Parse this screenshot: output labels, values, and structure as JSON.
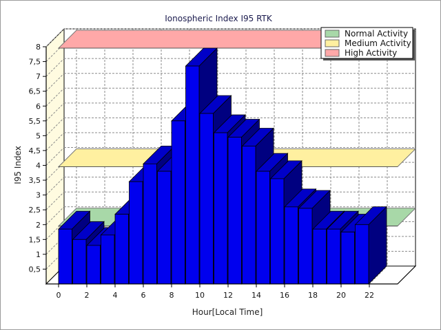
{
  "chart_data": {
    "type": "bar",
    "title": "Ionospheric Index I95 RTK",
    "xlabel": "Hour[Local Time]",
    "ylabel": "I95 Index",
    "xlim": [
      0,
      24
    ],
    "ylim": [
      0,
      8
    ],
    "x_ticks": [
      "0",
      "2",
      "4",
      "6",
      "8",
      "10",
      "12",
      "14",
      "16",
      "18",
      "20",
      "22"
    ],
    "y_ticks": [
      "0,5",
      "1",
      "1,5",
      "2",
      "2,5",
      "3",
      "3,5",
      "4",
      "4,5",
      "5",
      "5,5",
      "6",
      "6,5",
      "7",
      "7,5",
      "8"
    ],
    "x": [
      0,
      1,
      2,
      3,
      4,
      5,
      6,
      7,
      8,
      9,
      10,
      11,
      12,
      13,
      14,
      15,
      16,
      17,
      18,
      19,
      20,
      21,
      22
    ],
    "values": [
      1.85,
      1.5,
      1.3,
      1.65,
      2.35,
      3.45,
      4.05,
      3.8,
      5.5,
      7.35,
      5.75,
      5.1,
      4.95,
      4.65,
      3.8,
      3.55,
      2.6,
      2.55,
      1.85,
      1.85,
      1.75,
      2.0,
      0
    ],
    "bar_color": "#0000ee",
    "bands": [
      {
        "name": "Normal Activity",
        "value": 2.0,
        "color": "#a8d8a8"
      },
      {
        "name": "Medium Activity",
        "value": 4.0,
        "color": "#fff0a0"
      },
      {
        "name": "High Activity",
        "value": 8.0,
        "color": "#ffa8a8"
      }
    ],
    "legend_position": "top-right",
    "grid": true
  }
}
